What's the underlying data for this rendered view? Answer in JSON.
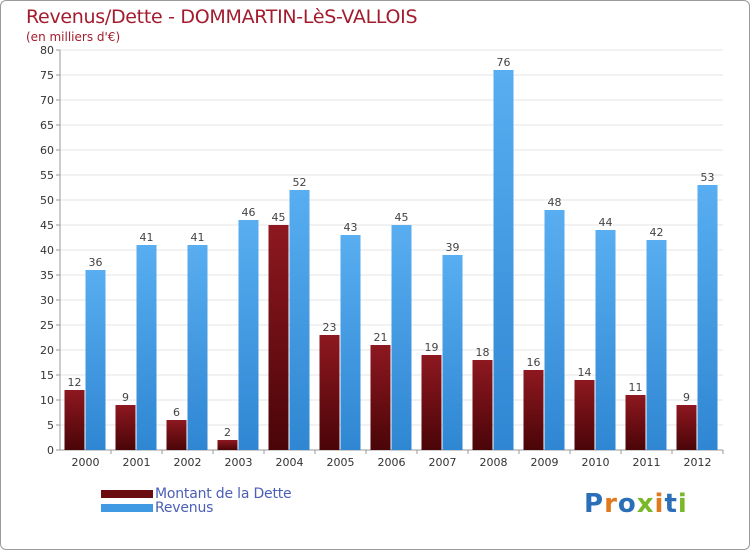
{
  "title": "Revenus/Dette - DOMMARTIN-LèS-VALLOIS",
  "subtitle": "(en milliers d'€)",
  "colors": {
    "dette": "#7a1017",
    "revenus": "#3f9ae3",
    "title": "#a31c2e",
    "legend_text": "#4a5fb8"
  },
  "legend": [
    {
      "label": "Montant de la Dette",
      "color": "#6b0c10"
    },
    {
      "label": "Revenus",
      "color": "#3f9ae3"
    }
  ],
  "logo": {
    "text": "Proxiti"
  },
  "chart_data": {
    "type": "bar",
    "categories": [
      "2000",
      "2001",
      "2002",
      "2003",
      "2004",
      "2005",
      "2006",
      "2007",
      "2008",
      "2009",
      "2010",
      "2011",
      "2012"
    ],
    "series": [
      {
        "name": "Montant de la Dette",
        "values": [
          12,
          9,
          6,
          2,
          45,
          23,
          21,
          19,
          18,
          16,
          14,
          11,
          9
        ]
      },
      {
        "name": "Revenus",
        "values": [
          36,
          41,
          41,
          46,
          52,
          43,
          45,
          39,
          76,
          48,
          44,
          42,
          53
        ]
      }
    ],
    "ylim": [
      0,
      80
    ],
    "yticks": [
      0,
      5,
      10,
      15,
      20,
      25,
      30,
      35,
      40,
      45,
      50,
      55,
      60,
      65,
      70,
      75,
      80
    ],
    "grid": true
  }
}
